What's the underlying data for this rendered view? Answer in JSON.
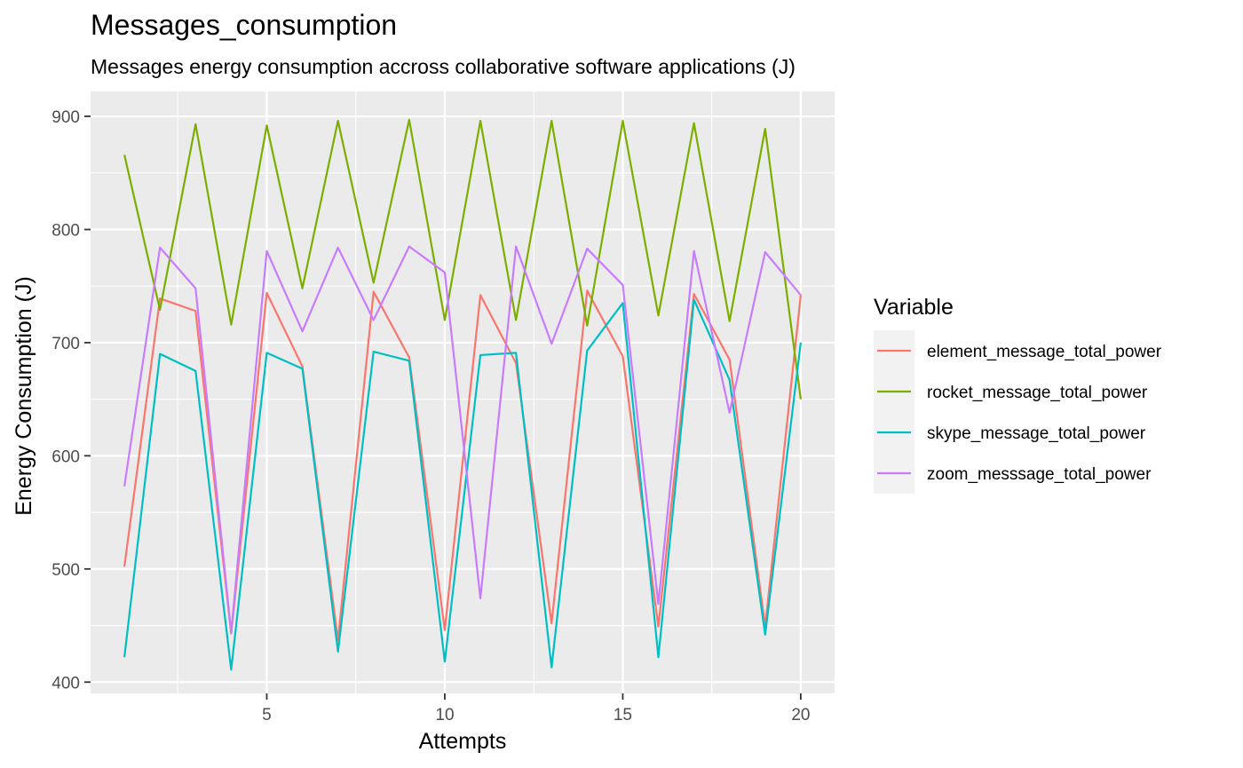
{
  "chart_data": {
    "type": "line",
    "title": "Messages_consumption",
    "subtitle": "Messages energy consumption accross collaborative software applications (J)",
    "xlabel": "Attempts",
    "ylabel": "Energy Consumption (J)",
    "xlim": [
      0.05,
      20.95
    ],
    "ylim": [
      390,
      922
    ],
    "x_ticks": [
      5,
      10,
      15,
      20
    ],
    "y_ticks": [
      400,
      500,
      600,
      700,
      800,
      900
    ],
    "grid": true,
    "legend": {
      "title": "Variable",
      "position": "right"
    },
    "x": [
      1,
      2,
      3,
      4,
      5,
      6,
      7,
      8,
      9,
      10,
      11,
      12,
      13,
      14,
      15,
      16,
      17,
      18,
      19,
      20
    ],
    "series": [
      {
        "name": "element_message_total_power",
        "color": "#F8766D",
        "values": [
          502,
          739,
          728,
          443,
          744,
          679,
          437,
          745,
          687,
          446,
          742,
          682,
          452,
          746,
          688,
          449,
          743,
          685,
          449,
          742
        ]
      },
      {
        "name": "rocket_message_total_power",
        "color": "#7CAE00",
        "values": [
          866,
          729,
          893,
          716,
          892,
          748,
          896,
          753,
          897,
          720,
          896,
          720,
          896,
          715,
          896,
          724,
          894,
          719,
          889,
          650
        ]
      },
      {
        "name": "skype_message_total_power",
        "color": "#00BFC4",
        "values": [
          422,
          690,
          675,
          411,
          691,
          677,
          427,
          692,
          684,
          418,
          689,
          691,
          413,
          693,
          735,
          422,
          738,
          667,
          442,
          700
        ]
      },
      {
        "name": "zoom_messsage_total_power",
        "color": "#C77CFF",
        "values": [
          573,
          784,
          748,
          444,
          781,
          710,
          784,
          720,
          785,
          762,
          474,
          785,
          699,
          783,
          751,
          469,
          781,
          638,
          780,
          742
        ]
      }
    ]
  }
}
